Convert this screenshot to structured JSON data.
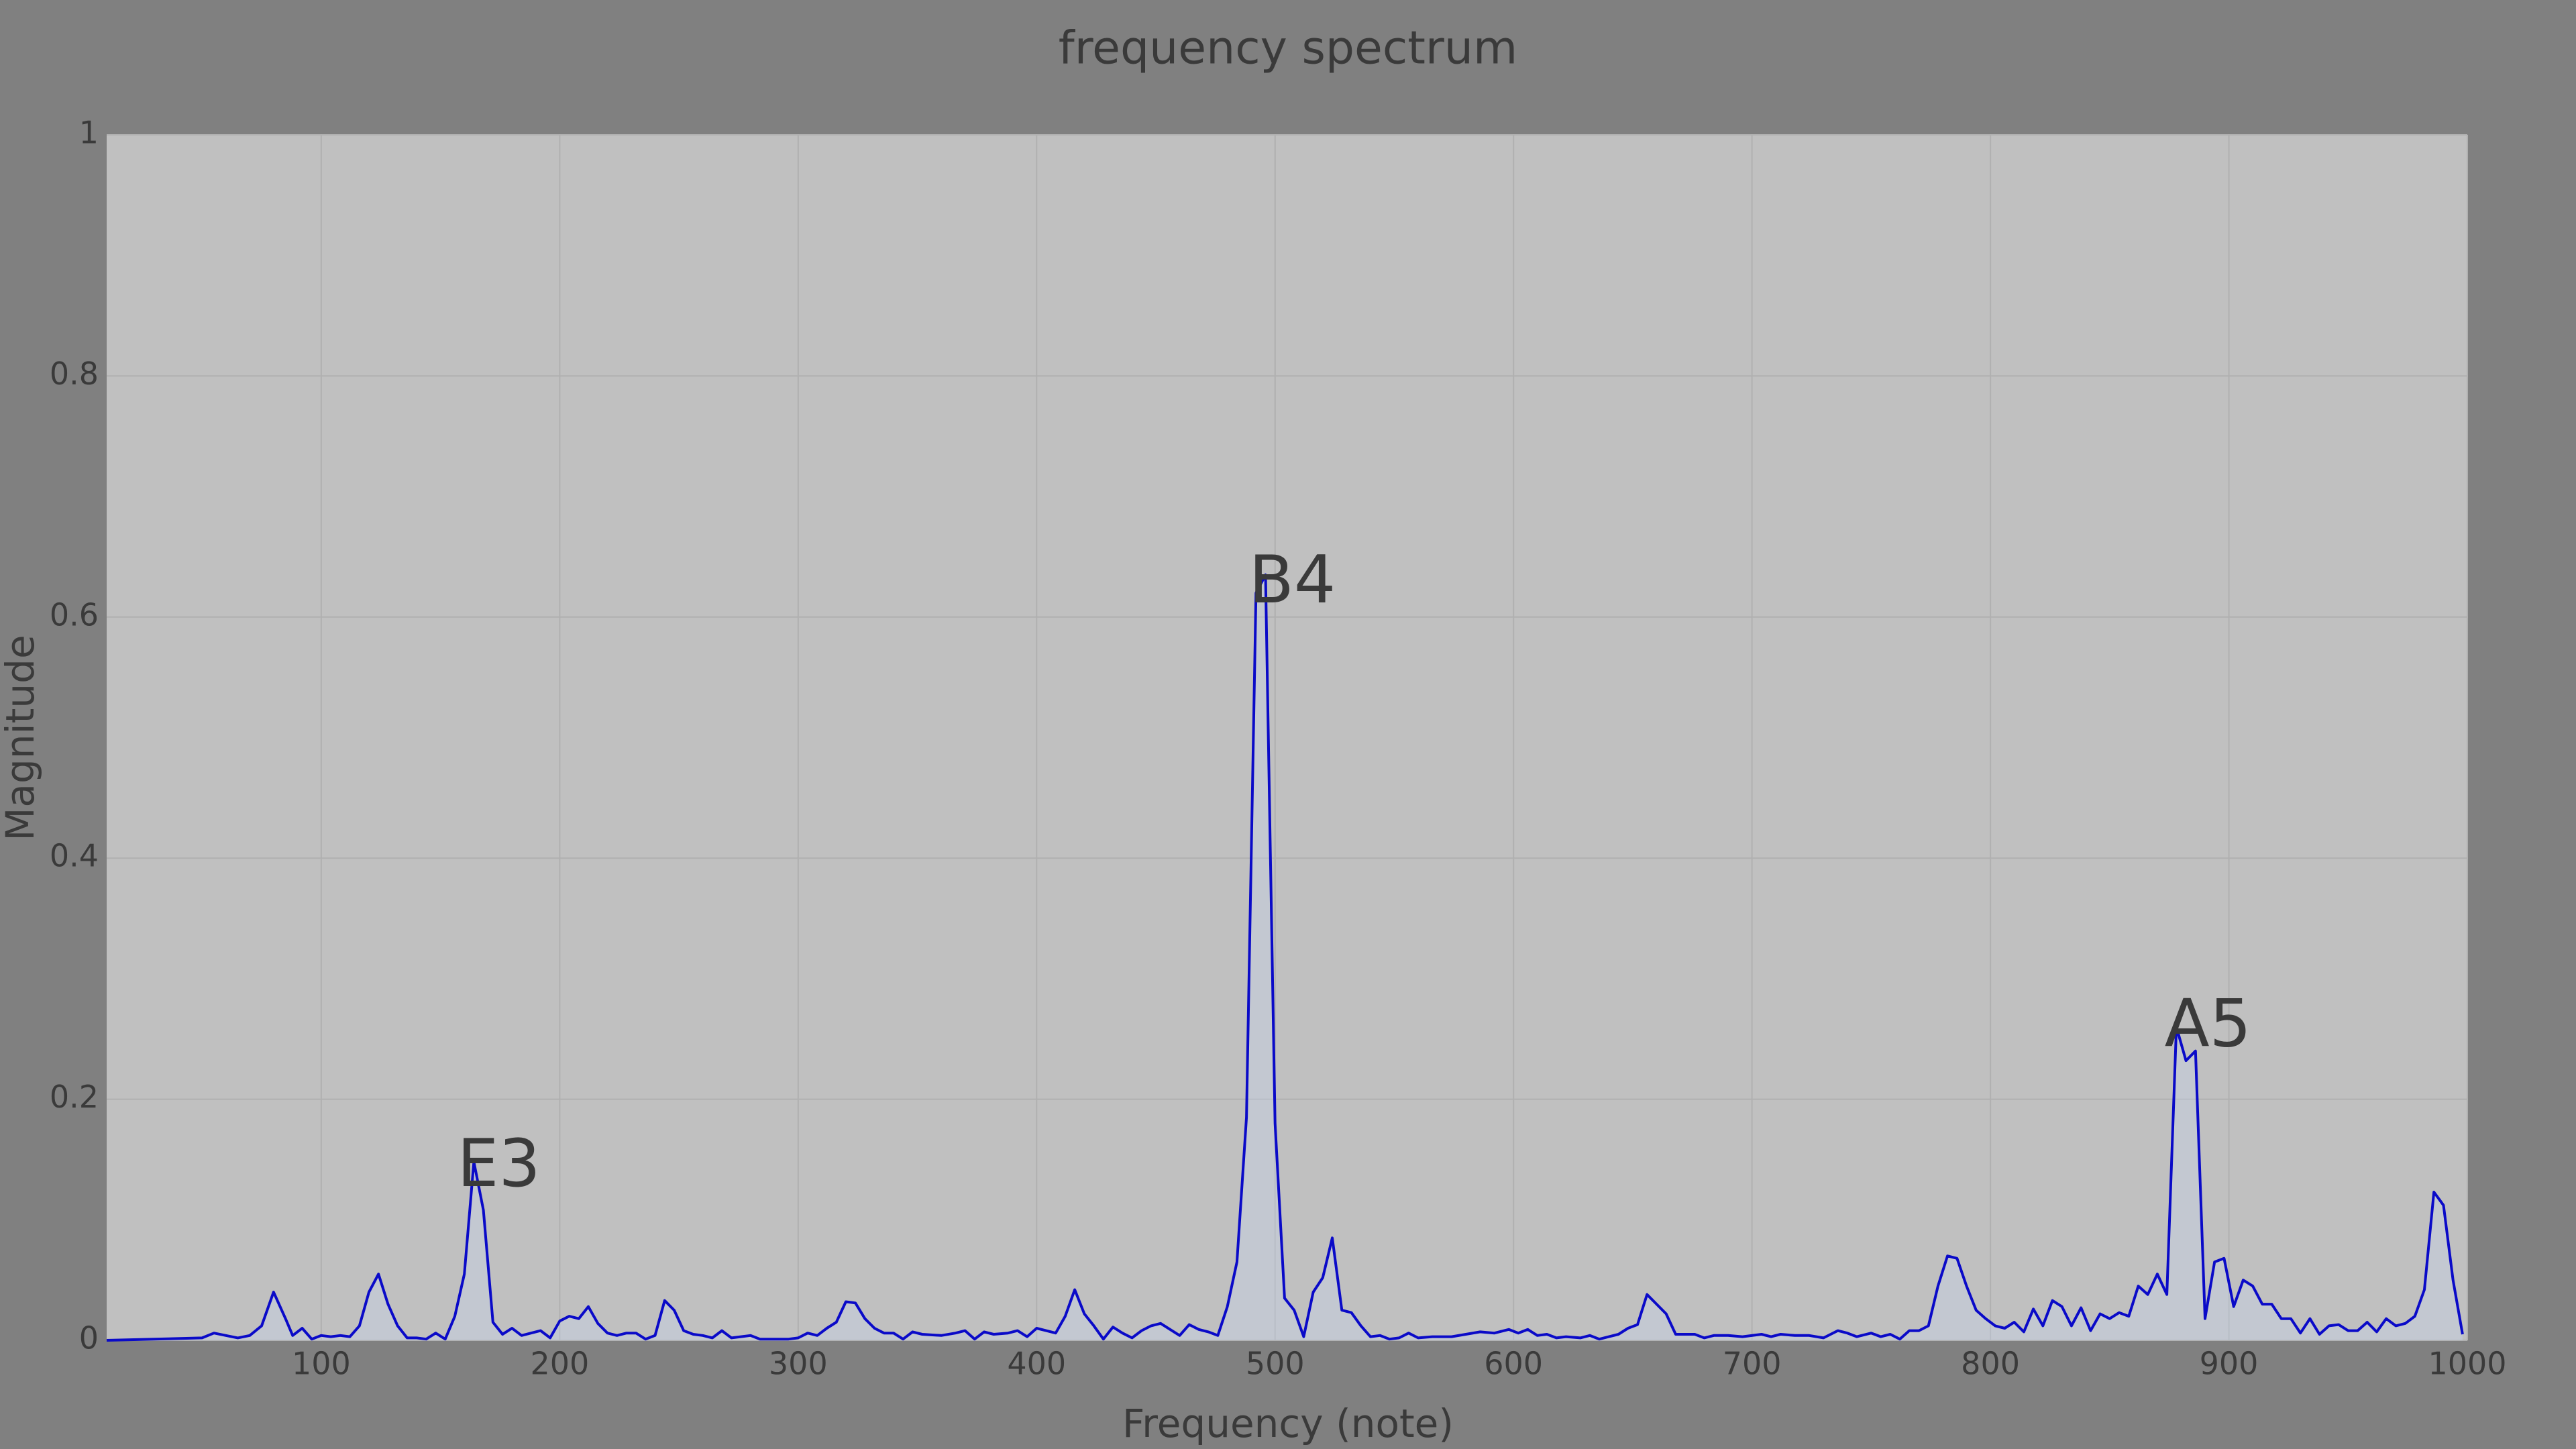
{
  "chart_data": {
    "type": "line",
    "title": "frequency spectrum",
    "x_label": "Frequency (note)",
    "y_label": "Magnitude",
    "color": "#0a0ac8",
    "grid": true,
    "xlim": [
      10,
      1000
    ],
    "ylim": [
      0,
      1
    ],
    "xticks": [
      100,
      200,
      300,
      400,
      500,
      600,
      700,
      800,
      900,
      1000
    ],
    "yticks": [
      0,
      0.2,
      0.4,
      0.6,
      0.8,
      1
    ],
    "annotations": [
      {
        "text": "E3",
        "x": 157,
        "y": 0.128
      },
      {
        "text": "B4",
        "x": 489,
        "y": 0.612
      },
      {
        "text": "A5",
        "x": 873,
        "y": 0.244
      }
    ],
    "x": [
      10,
      50,
      55,
      60,
      65,
      70,
      75,
      80,
      85,
      88,
      92,
      96,
      100,
      104,
      108,
      112,
      116,
      120,
      124,
      128,
      132,
      136,
      140,
      144,
      148,
      152,
      156,
      160,
      164,
      168,
      172,
      176,
      180,
      184,
      188,
      192,
      196,
      200,
      204,
      208,
      212,
      216,
      220,
      224,
      228,
      232,
      236,
      240,
      244,
      248,
      252,
      256,
      260,
      264,
      268,
      272,
      276,
      280,
      284,
      290,
      296,
      300,
      304,
      308,
      312,
      316,
      320,
      324,
      328,
      332,
      336,
      340,
      344,
      348,
      352,
      360,
      366,
      370,
      374,
      378,
      382,
      388,
      392,
      396,
      400,
      404,
      408,
      412,
      416,
      420,
      424,
      428,
      432,
      436,
      440,
      444,
      448,
      452,
      456,
      460,
      464,
      468,
      472,
      476,
      480,
      484,
      488,
      492,
      496,
      500,
      504,
      508,
      512,
      516,
      520,
      524,
      528,
      532,
      536,
      540,
      544,
      548,
      552,
      556,
      560,
      566,
      574,
      580,
      586,
      592,
      598,
      602,
      606,
      610,
      614,
      618,
      622,
      628,
      632,
      636,
      640,
      644,
      648,
      652,
      656,
      660,
      664,
      668,
      676,
      680,
      684,
      690,
      696,
      704,
      708,
      712,
      718,
      724,
      730,
      736,
      740,
      744,
      750,
      754,
      758,
      762,
      766,
      770,
      774,
      778,
      782,
      786,
      790,
      794,
      798,
      802,
      806,
      810,
      814,
      818,
      822,
      826,
      830,
      834,
      838,
      842,
      846,
      850,
      854,
      858,
      862,
      866,
      870,
      874,
      878,
      882,
      886,
      890,
      894,
      898,
      902,
      906,
      910,
      914,
      918,
      922,
      926,
      930,
      934,
      938,
      942,
      946,
      950,
      954,
      958,
      962,
      966,
      970,
      974,
      978,
      982,
      986,
      990,
      994,
      998
    ],
    "values": [
      0,
      0.002,
      0.006,
      0.004,
      0.002,
      0.004,
      0.012,
      0.04,
      0.018,
      0.004,
      0.01,
      0.001,
      0.004,
      0.003,
      0.004,
      0.003,
      0.012,
      0.04,
      0.055,
      0.03,
      0.012,
      0.002,
      0.002,
      0.001,
      0.006,
      0.001,
      0.02,
      0.055,
      0.148,
      0.108,
      0.015,
      0.005,
      0.01,
      0.004,
      0.006,
      0.008,
      0.002,
      0.016,
      0.02,
      0.018,
      0.028,
      0.014,
      0.006,
      0.004,
      0.006,
      0.006,
      0.001,
      0.004,
      0.033,
      0.025,
      0.008,
      0.005,
      0.004,
      0.002,
      0.008,
      0.002,
      0.003,
      0.004,
      0.001,
      0.001,
      0.001,
      0.002,
      0.006,
      0.004,
      0.01,
      0.015,
      0.032,
      0.031,
      0.018,
      0.01,
      0.006,
      0.006,
      0.001,
      0.007,
      0.005,
      0.004,
      0.006,
      0.008,
      0.001,
      0.007,
      0.005,
      0.006,
      0.008,
      0.003,
      0.01,
      0.008,
      0.006,
      0.02,
      0.042,
      0.022,
      0.012,
      0.001,
      0.011,
      0.006,
      0.002,
      0.008,
      0.012,
      0.014,
      0.009,
      0.004,
      0.013,
      0.009,
      0.007,
      0.004,
      0.028,
      0.065,
      0.185,
      0.62,
      0.635,
      0.18,
      0.035,
      0.025,
      0.003,
      0.04,
      0.052,
      0.085,
      0.025,
      0.023,
      0.012,
      0.003,
      0.004,
      0.001,
      0.002,
      0.006,
      0.002,
      0.003,
      0.003,
      0.005,
      0.007,
      0.006,
      0.009,
      0.006,
      0.009,
      0.004,
      0.005,
      0.002,
      0.003,
      0.002,
      0.004,
      0.001,
      0.003,
      0.005,
      0.01,
      0.013,
      0.038,
      0.03,
      0.022,
      0.005,
      0.005,
      0.002,
      0.004,
      0.004,
      0.003,
      0.005,
      0.003,
      0.005,
      0.004,
      0.004,
      0.002,
      0.008,
      0.006,
      0.003,
      0.006,
      0.003,
      0.005,
      0.001,
      0.008,
      0.008,
      0.012,
      0.045,
      0.07,
      0.068,
      0.045,
      0.025,
      0.018,
      0.012,
      0.01,
      0.015,
      0.007,
      0.026,
      0.012,
      0.033,
      0.028,
      0.012,
      0.027,
      0.008,
      0.022,
      0.018,
      0.023,
      0.02,
      0.045,
      0.038,
      0.055,
      0.038,
      0.26,
      0.232,
      0.24,
      0.018,
      0.065,
      0.068,
      0.028,
      0.05,
      0.045,
      0.03,
      0.03,
      0.018,
      0.018,
      0.006,
      0.018,
      0.005,
      0.012,
      0.013,
      0.008,
      0.008,
      0.015,
      0.007,
      0.018,
      0.012,
      0.014,
      0.02,
      0.042,
      0.123,
      0.112,
      0.05,
      0.005
    ]
  }
}
